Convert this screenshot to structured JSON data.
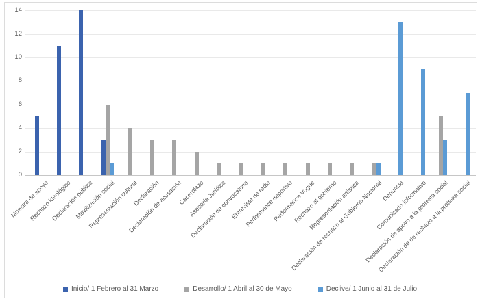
{
  "chart_data": {
    "type": "bar",
    "title": "",
    "xlabel": "",
    "ylabel": "",
    "ylim": [
      0,
      14
    ],
    "y_ticks": [
      0,
      2,
      4,
      6,
      8,
      10,
      12,
      14
    ],
    "grid": true,
    "legend_position": "bottom",
    "categories": [
      "Muestra de apoyo",
      "Rechazo ideológico",
      "Declaración pública",
      "Movilización social",
      "Representación cultural",
      "Declaración",
      "Declaración de acusación",
      "Cacerolazo",
      "Asesoría Jurídica",
      "Declaración de convocatoria",
      "Entrevista de radio",
      "Performance deportivo",
      "Performance Vogue",
      "Rechazo al gobierno",
      "Representación artística",
      "Declaración de rechazo al Gobierno Nacional",
      "Denuncia",
      "Comunicado informativo",
      "Declaración de apoyo a la protesta social",
      "Declaración de de rechazo a la protesta social"
    ],
    "series": [
      {
        "name": "Inicio/ 1 Febrero al 31 Marzo",
        "color": "#3B63AE",
        "values": [
          5,
          11,
          14,
          3,
          0,
          0,
          0,
          0,
          0,
          0,
          0,
          0,
          0,
          0,
          0,
          0,
          0,
          0,
          0,
          0
        ]
      },
      {
        "name": "Desarrollo/ 1 Abril al 30 de Mayo",
        "color": "#A5A5A5",
        "values": [
          0,
          0,
          0,
          6,
          4,
          3,
          3,
          2,
          1,
          1,
          1,
          1,
          1,
          1,
          1,
          1,
          0,
          0,
          5,
          0
        ]
      },
      {
        "name": "Declive/ 1 Junio al 31 de Julio",
        "color": "#5B9BD5",
        "values": [
          0,
          0,
          0,
          1,
          0,
          0,
          0,
          0,
          0,
          0,
          0,
          0,
          0,
          0,
          0,
          1,
          13,
          9,
          3,
          7
        ]
      }
    ]
  }
}
